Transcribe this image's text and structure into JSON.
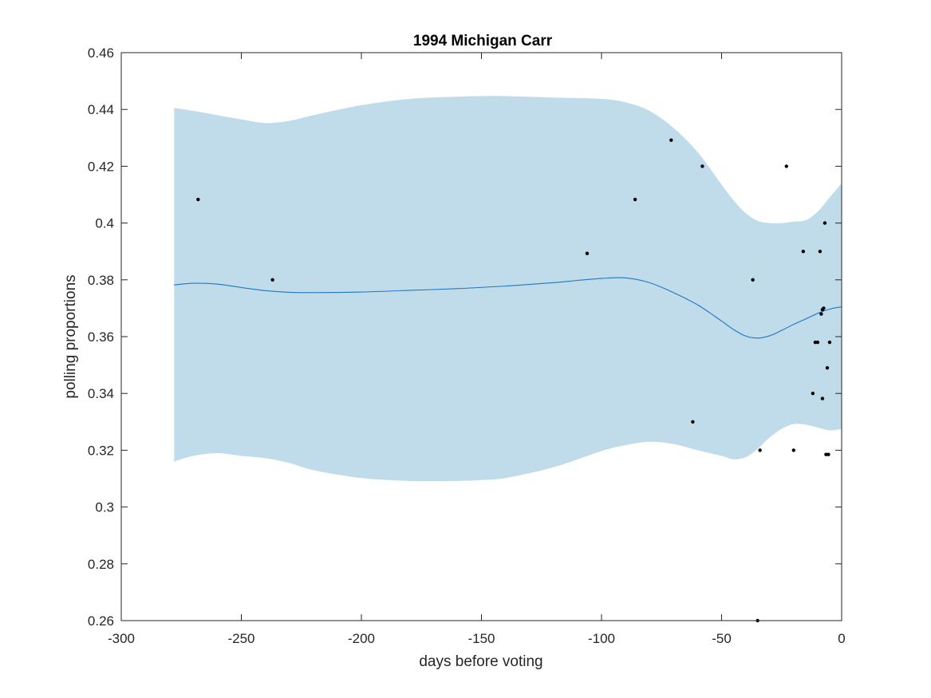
{
  "chart_data": {
    "type": "line",
    "title": "1994 Michigan Carr",
    "xlabel": "days before voting",
    "ylabel": "polling proportions",
    "xlim": [
      -300,
      0
    ],
    "ylim": [
      0.26,
      0.46
    ],
    "xticks": [
      -300,
      -250,
      -200,
      -150,
      -100,
      -50,
      0
    ],
    "xtick_labels": [
      "-300",
      "-250",
      "-200",
      "-150",
      "-100",
      "-50",
      "0"
    ],
    "yticks": [
      0.26,
      0.28,
      0.3,
      0.32,
      0.34,
      0.36,
      0.38,
      0.4,
      0.42,
      0.44,
      0.46
    ],
    "ytick_labels": [
      "0.26",
      "0.28",
      "0.3",
      "0.32",
      "0.34",
      "0.36",
      "0.38",
      "0.4",
      "0.42",
      "0.44",
      "0.46"
    ],
    "grid": false,
    "colors": {
      "band": "#c0dcea",
      "line": "#1f77c4",
      "points": "#000000",
      "axes": "#262626"
    },
    "series": [
      {
        "type": "area",
        "x": [
          -278,
          -270,
          -260,
          -250,
          -240,
          -230,
          -220,
          -200,
          -180,
          -160,
          -150,
          -140,
          -120,
          -100,
          -90,
          -80,
          -70,
          -60,
          -50,
          -45,
          -40,
          -35,
          -30,
          -25,
          -20,
          -15,
          -10,
          -5,
          0
        ],
        "upper": [
          0.4405,
          0.4395,
          0.438,
          0.4365,
          0.4352,
          0.436,
          0.438,
          0.4415,
          0.4437,
          0.4445,
          0.4447,
          0.4447,
          0.4442,
          0.4437,
          0.4425,
          0.4395,
          0.4335,
          0.425,
          0.4135,
          0.408,
          0.4035,
          0.4008,
          0.4,
          0.4,
          0.4005,
          0.401,
          0.404,
          0.409,
          0.414
        ],
        "lower": [
          0.316,
          0.318,
          0.319,
          0.318,
          0.3172,
          0.3155,
          0.313,
          0.3102,
          0.3092,
          0.3092,
          0.3095,
          0.3102,
          0.314,
          0.3197,
          0.3218,
          0.323,
          0.3222,
          0.32,
          0.318,
          0.3168,
          0.3175,
          0.3205,
          0.3245,
          0.3275,
          0.3292,
          0.329,
          0.328,
          0.327,
          0.3275
        ]
      },
      {
        "type": "line",
        "x": [
          -278,
          -270,
          -260,
          -250,
          -240,
          -230,
          -220,
          -200,
          -180,
          -160,
          -140,
          -120,
          -110,
          -100,
          -90,
          -80,
          -70,
          -60,
          -50,
          -45,
          -40,
          -35,
          -30,
          -25,
          -20,
          -15,
          -10,
          -5,
          0
        ],
        "y": [
          0.3782,
          0.3788,
          0.3785,
          0.3773,
          0.3762,
          0.3756,
          0.3755,
          0.3757,
          0.3763,
          0.3769,
          0.3778,
          0.379,
          0.3798,
          0.3805,
          0.3807,
          0.379,
          0.3755,
          0.3712,
          0.3655,
          0.3625,
          0.3602,
          0.3595,
          0.3603,
          0.3622,
          0.3643,
          0.3662,
          0.3682,
          0.3697,
          0.3705
        ]
      },
      {
        "type": "scatter",
        "points": [
          [
            -268,
            0.4083
          ],
          [
            -237,
            0.38
          ],
          [
            -106,
            0.3893
          ],
          [
            -86,
            0.4083
          ],
          [
            -71,
            0.4292
          ],
          [
            -62,
            0.33
          ],
          [
            -58,
            0.42
          ],
          [
            -37,
            0.38
          ],
          [
            -35,
            0.26
          ],
          [
            -34,
            0.32
          ],
          [
            -23,
            0.42
          ],
          [
            -20,
            0.32
          ],
          [
            -16,
            0.39
          ],
          [
            -12,
            0.34
          ],
          [
            -11,
            0.358
          ],
          [
            -10,
            0.358
          ],
          [
            -9,
            0.39
          ],
          [
            -8.5,
            0.368
          ],
          [
            -8,
            0.3695
          ],
          [
            -8,
            0.3382
          ],
          [
            -7.5,
            0.37
          ],
          [
            -7,
            0.4
          ],
          [
            -6.5,
            0.3185
          ],
          [
            -6,
            0.349
          ],
          [
            -5.5,
            0.3185
          ],
          [
            -5,
            0.358
          ]
        ]
      }
    ]
  }
}
